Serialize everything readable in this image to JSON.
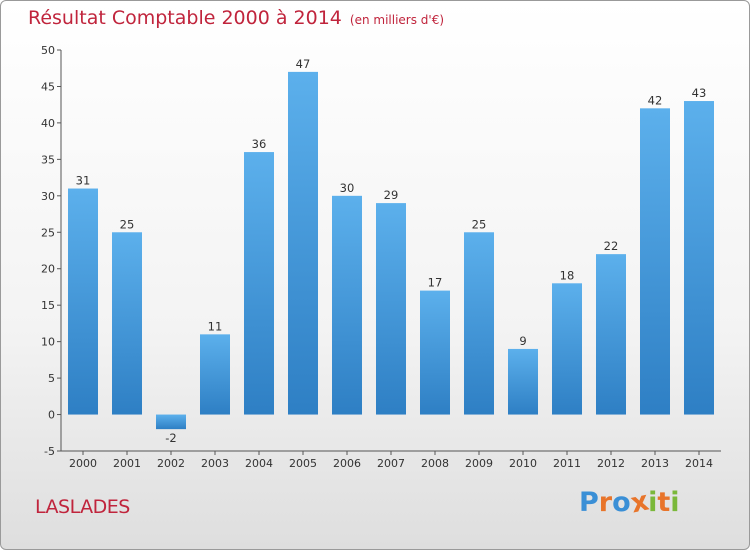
{
  "title": "Résultat Comptable 2000 à 2014",
  "unit_note": "(en milliers d'€)",
  "commune": "LASLADES",
  "logo": {
    "text": "Proxiti",
    "letters": [
      "P",
      "r",
      "o",
      "x",
      "i",
      "t",
      "i"
    ],
    "colors": [
      "#3a8fd6",
      "#e8742a",
      "#3a8fd6",
      "#e8742a",
      "#7ab83a",
      "#e8742a",
      "#7ab83a"
    ]
  },
  "colors": {
    "title": "#c0243c",
    "bar_light": "#5cb0ec",
    "bar_dark": "#2e7fc4"
  },
  "chart_data": {
    "type": "bar",
    "categories": [
      "2000",
      "2001",
      "2002",
      "2003",
      "2004",
      "2005",
      "2006",
      "2007",
      "2008",
      "2009",
      "2010",
      "2011",
      "2012",
      "2013",
      "2014"
    ],
    "values": [
      31,
      25,
      -2,
      11,
      36,
      47,
      30,
      29,
      17,
      25,
      9,
      18,
      22,
      42,
      43
    ],
    "yticks": [
      -5,
      0,
      5,
      10,
      15,
      20,
      25,
      30,
      35,
      40,
      45,
      50
    ],
    "ylim": [
      -5,
      50
    ],
    "grid": false,
    "xlabel": "",
    "ylabel": ""
  }
}
